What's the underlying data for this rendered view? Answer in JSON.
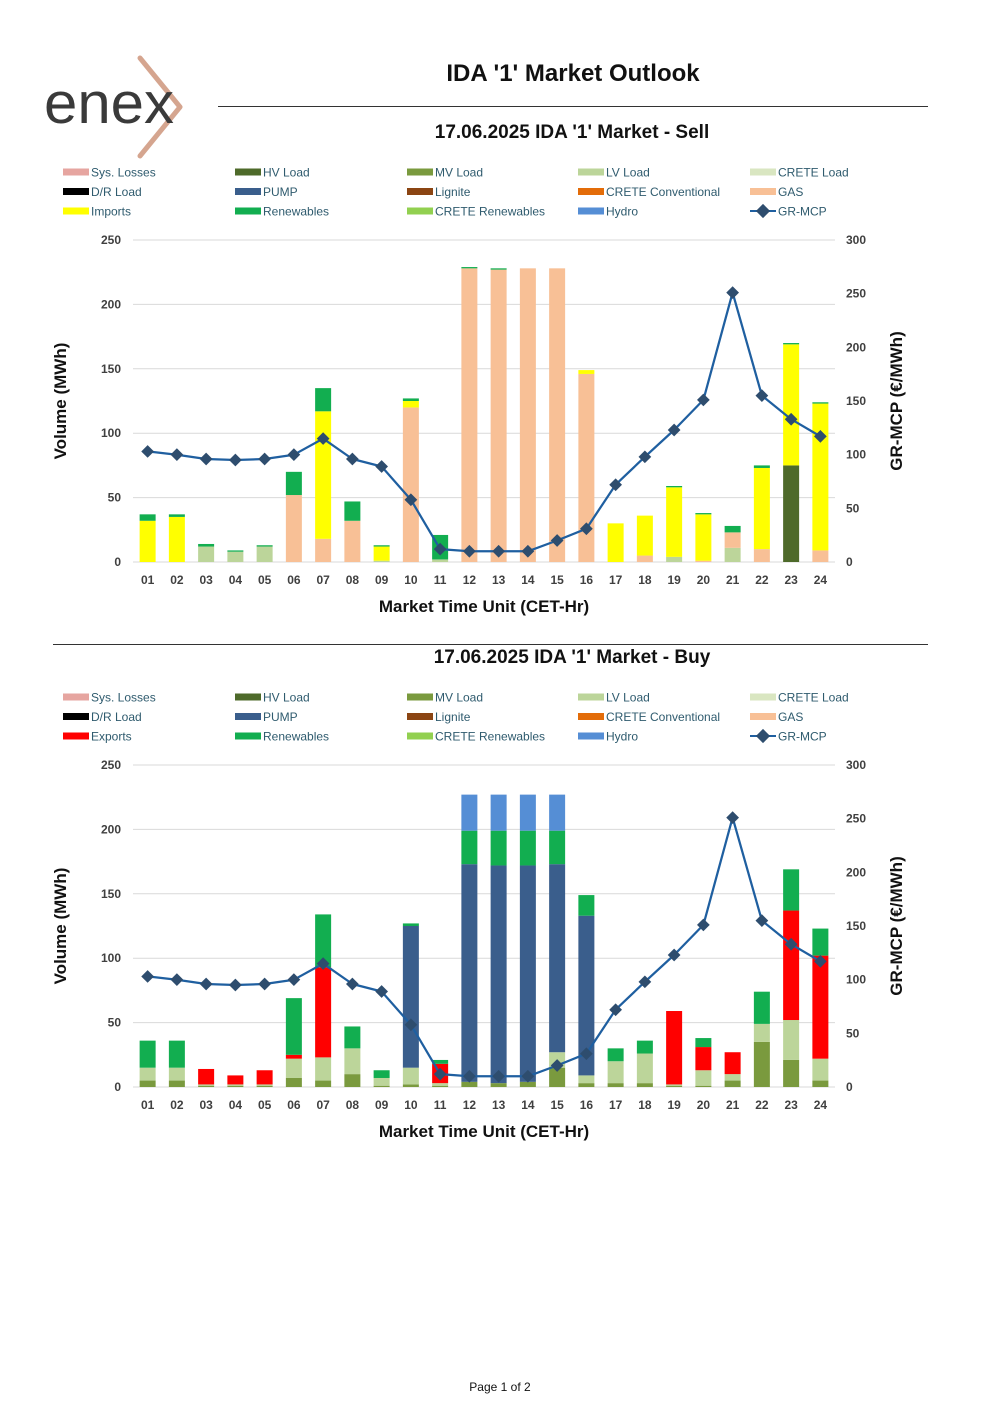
{
  "header": {
    "logo_text": "enex",
    "title": "IDA '1' Market Outlook"
  },
  "footer": {
    "page": "Page 1 of 2"
  },
  "colors": {
    "Sys. Losses": "#E6A5A0",
    "HV Load": "#4E6A2A",
    "MV Load": "#7A9A3E",
    "LV Load": "#BCD59A",
    "CRETE Load": "#D9E6C1",
    "D/R Load": "#000000",
    "PUMP": "#3A5E8C",
    "Lignite": "#8B4513",
    "CRETE Conventional": "#E36C09",
    "GAS": "#F8C096",
    "Imports": "#FFFF00",
    "Exports": "#FF0000",
    "Renewables": "#12AE50",
    "CRETE Renewables": "#92D050",
    "Hydro": "#558ED5",
    "GR-MCP": "#1F5FA0",
    "GR-MCP-marker": "#2E4D6E",
    "logo_gray": "#3A3A3A",
    "logo_chevron": "#D5A58F"
  },
  "chart_data": [
    {
      "type": "bar",
      "stacked": true,
      "title": "17.06.2025  IDA '1' Market - Sell",
      "xlabel": "Market Time Unit (CET-Hr)",
      "ylabel": "Volume (MWh)",
      "y2label": "GR-MCP (€/MWh)",
      "ylim": [
        0,
        250
      ],
      "yticks": [
        0,
        50,
        100,
        150,
        200,
        250
      ],
      "y2lim": [
        0,
        300
      ],
      "y2ticks": [
        0,
        50,
        100,
        150,
        200,
        250,
        300
      ],
      "categories": [
        "01",
        "02",
        "03",
        "04",
        "05",
        "06",
        "07",
        "08",
        "09",
        "10",
        "11",
        "12",
        "13",
        "14",
        "15",
        "16",
        "17",
        "18",
        "19",
        "20",
        "21",
        "22",
        "23",
        "24"
      ],
      "legend": [
        "Sys. Losses",
        "HV Load",
        "MV Load",
        "LV Load",
        "CRETE Load",
        "D/R Load",
        "PUMP",
        "Lignite",
        "CRETE Conventional",
        "GAS",
        "Imports",
        "Renewables",
        "CRETE Renewables",
        "Hydro",
        "GR-MCP"
      ],
      "series": [
        {
          "name": "Sys. Losses",
          "values": [
            0,
            0,
            0,
            0,
            0,
            0,
            0,
            0,
            0,
            0,
            0,
            0,
            0,
            0,
            0,
            0,
            0,
            0,
            0,
            0,
            0,
            0,
            0,
            0
          ]
        },
        {
          "name": "HV Load",
          "values": [
            0,
            0,
            0,
            0,
            0,
            0,
            0,
            0,
            0,
            0,
            0,
            0,
            0,
            0,
            0,
            0,
            0,
            0,
            0,
            0,
            0,
            0,
            75,
            0
          ]
        },
        {
          "name": "MV Load",
          "values": [
            0,
            0,
            0,
            0,
            0,
            0,
            0,
            0,
            0,
            0,
            0,
            0,
            0,
            0,
            0,
            0,
            0,
            0,
            0,
            0,
            0,
            0,
            0,
            0
          ]
        },
        {
          "name": "LV Load",
          "values": [
            0,
            0,
            12,
            8,
            12,
            0,
            0,
            0,
            1,
            0,
            2,
            0,
            0,
            0,
            0,
            0,
            0,
            0,
            4,
            0,
            11,
            0,
            0,
            0
          ]
        },
        {
          "name": "CRETE Load",
          "values": [
            0,
            0,
            0,
            0,
            0,
            0,
            0,
            0,
            0,
            0,
            0,
            0,
            0,
            0,
            0,
            0,
            0,
            0,
            0,
            0,
            0,
            0,
            0,
            0
          ]
        },
        {
          "name": "D/R Load",
          "values": [
            0,
            0,
            0,
            0,
            0,
            0,
            0,
            0,
            0,
            0,
            0,
            0,
            0,
            0,
            0,
            0,
            0,
            0,
            0,
            0,
            0,
            0,
            0,
            0
          ]
        },
        {
          "name": "PUMP",
          "values": [
            0,
            0,
            0,
            0,
            0,
            0,
            0,
            0,
            0,
            0,
            0,
            0,
            0,
            0,
            0,
            0,
            0,
            0,
            0,
            0,
            0,
            0,
            0,
            0
          ]
        },
        {
          "name": "Lignite",
          "values": [
            0,
            0,
            0,
            0,
            0,
            0,
            0,
            0,
            0,
            0,
            0,
            0,
            0,
            0,
            0,
            0,
            0,
            0,
            0,
            0,
            0,
            0,
            0,
            0
          ]
        },
        {
          "name": "CRETE Conventional",
          "values": [
            0,
            0,
            0,
            0,
            0,
            0,
            0,
            0,
            0,
            0,
            0,
            0,
            0,
            0,
            0,
            0,
            0,
            0,
            0,
            0,
            0,
            0,
            0,
            0
          ]
        },
        {
          "name": "GAS",
          "values": [
            0,
            0,
            0,
            0,
            0,
            52,
            18,
            32,
            0,
            120,
            0,
            228,
            227,
            228,
            228,
            146,
            0,
            5,
            0,
            1,
            12,
            10,
            0,
            9
          ]
        },
        {
          "name": "Imports",
          "values": [
            32,
            35,
            0,
            0,
            0,
            0,
            99,
            0,
            11,
            5,
            0,
            0,
            0,
            0,
            0,
            3,
            30,
            31,
            54,
            36,
            0,
            63,
            94,
            114
          ]
        },
        {
          "name": "Renewables",
          "values": [
            5,
            2,
            2,
            1,
            1,
            18,
            18,
            15,
            1,
            2,
            19,
            1,
            1,
            0,
            0,
            0,
            0,
            0,
            1,
            1,
            5,
            2,
            1,
            1
          ]
        },
        {
          "name": "CRETE Renewables",
          "values": [
            0,
            0,
            0,
            0,
            0,
            0,
            0,
            0,
            0,
            0,
            0,
            0,
            0,
            0,
            0,
            0,
            0,
            0,
            0,
            0,
            0,
            0,
            0,
            0
          ]
        },
        {
          "name": "Hydro",
          "values": [
            0,
            0,
            0,
            0,
            0,
            0,
            0,
            0,
            0,
            0,
            0,
            0,
            0,
            0,
            0,
            0,
            0,
            0,
            0,
            0,
            0,
            0,
            0,
            0
          ]
        }
      ],
      "line": {
        "name": "GR-MCP",
        "axis": "right",
        "values": [
          103,
          100,
          96,
          95,
          96,
          100,
          115,
          96,
          89,
          58,
          12,
          10,
          10,
          10,
          20,
          31,
          72,
          98,
          123,
          151,
          251,
          155,
          133,
          117
        ]
      }
    },
    {
      "type": "bar",
      "stacked": true,
      "title": "17.06.2025  IDA '1' Market - Buy",
      "xlabel": "Market Time Unit (CET-Hr)",
      "ylabel": "Volume (MWh)",
      "y2label": "GR-MCP (€/MWh)",
      "ylim": [
        0,
        250
      ],
      "yticks": [
        0,
        50,
        100,
        150,
        200,
        250
      ],
      "y2lim": [
        0,
        300
      ],
      "y2ticks": [
        0,
        50,
        100,
        150,
        200,
        250,
        300
      ],
      "categories": [
        "01",
        "02",
        "03",
        "04",
        "05",
        "06",
        "07",
        "08",
        "09",
        "10",
        "11",
        "12",
        "13",
        "14",
        "15",
        "16",
        "17",
        "18",
        "19",
        "20",
        "21",
        "22",
        "23",
        "24"
      ],
      "legend": [
        "Sys. Losses",
        "HV Load",
        "MV Load",
        "LV Load",
        "CRETE Load",
        "D/R Load",
        "PUMP",
        "Lignite",
        "CRETE Conventional",
        "GAS",
        "Exports",
        "Renewables",
        "CRETE Renewables",
        "Hydro",
        "GR-MCP"
      ],
      "series": [
        {
          "name": "Sys. Losses",
          "values": [
            0,
            0,
            0,
            0,
            0,
            0,
            0,
            0,
            0,
            0,
            0,
            0,
            0,
            0,
            0,
            0,
            0,
            0,
            0,
            0,
            0,
            0,
            0,
            0
          ]
        },
        {
          "name": "HV Load",
          "values": [
            0,
            0,
            0,
            0,
            0,
            0,
            0,
            0,
            0,
            0,
            0,
            0,
            0,
            0,
            0,
            0,
            0,
            0,
            0,
            0,
            0,
            0,
            0,
            0
          ]
        },
        {
          "name": "MV Load",
          "values": [
            5,
            5,
            1,
            1,
            1,
            7,
            5,
            10,
            1,
            2,
            1,
            4,
            3,
            4,
            15,
            3,
            3,
            3,
            1,
            1,
            5,
            35,
            21,
            5
          ]
        },
        {
          "name": "LV Load",
          "values": [
            10,
            10,
            1,
            1,
            1,
            15,
            18,
            20,
            6,
            13,
            2,
            0,
            0,
            0,
            12,
            6,
            17,
            23,
            1,
            12,
            5,
            14,
            31,
            17
          ]
        },
        {
          "name": "CRETE Load",
          "values": [
            0,
            0,
            0,
            0,
            0,
            0,
            0,
            0,
            0,
            0,
            0,
            0,
            0,
            0,
            0,
            0,
            0,
            0,
            0,
            0,
            0,
            0,
            0,
            0
          ]
        },
        {
          "name": "D/R Load",
          "values": [
            0,
            0,
            0,
            0,
            0,
            0,
            0,
            0,
            0,
            0,
            0,
            0,
            0,
            0,
            0,
            0,
            0,
            0,
            0,
            0,
            0,
            0,
            0,
            0
          ]
        },
        {
          "name": "PUMP",
          "values": [
            0,
            0,
            0,
            0,
            0,
            0,
            0,
            0,
            0,
            110,
            0,
            169,
            169,
            168,
            146,
            124,
            0,
            0,
            0,
            0,
            0,
            0,
            0,
            0
          ]
        },
        {
          "name": "Lignite",
          "values": [
            0,
            0,
            0,
            0,
            0,
            0,
            0,
            0,
            0,
            0,
            0,
            0,
            0,
            0,
            0,
            0,
            0,
            0,
            0,
            0,
            0,
            0,
            0,
            0
          ]
        },
        {
          "name": "CRETE Conventional",
          "values": [
            0,
            0,
            0,
            0,
            0,
            0,
            0,
            0,
            0,
            0,
            0,
            0,
            0,
            0,
            0,
            0,
            0,
            0,
            0,
            0,
            0,
            0,
            0,
            0
          ]
        },
        {
          "name": "GAS",
          "values": [
            0,
            0,
            0,
            0,
            0,
            0,
            0,
            0,
            0,
            0,
            0,
            0,
            0,
            0,
            0,
            0,
            0,
            0,
            0,
            0,
            0,
            0,
            0,
            0
          ]
        },
        {
          "name": "Exports",
          "values": [
            0,
            0,
            12,
            7,
            11,
            3,
            70,
            0,
            0,
            0,
            15,
            0,
            0,
            0,
            0,
            0,
            0,
            0,
            57,
            18,
            17,
            0,
            85,
            80
          ]
        },
        {
          "name": "Renewables",
          "values": [
            21,
            21,
            0,
            0,
            0,
            44,
            41,
            17,
            6,
            2,
            3,
            26,
            27,
            27,
            26,
            16,
            10,
            10,
            0,
            7,
            0,
            25,
            32,
            21
          ]
        },
        {
          "name": "CRETE Renewables",
          "values": [
            0,
            0,
            0,
            0,
            0,
            0,
            0,
            0,
            0,
            0,
            0,
            0,
            0,
            0,
            0,
            0,
            0,
            0,
            0,
            0,
            0,
            0,
            0,
            0
          ]
        },
        {
          "name": "Hydro",
          "values": [
            0,
            0,
            0,
            0,
            0,
            0,
            0,
            0,
            0,
            0,
            0,
            28,
            28,
            28,
            28,
            0,
            0,
            0,
            0,
            0,
            0,
            0,
            0,
            0
          ]
        }
      ],
      "line": {
        "name": "GR-MCP",
        "axis": "right",
        "values": [
          103,
          100,
          96,
          95,
          96,
          100,
          115,
          96,
          89,
          58,
          12,
          10,
          10,
          10,
          20,
          31,
          72,
          98,
          123,
          151,
          251,
          155,
          133,
          117
        ]
      }
    }
  ]
}
